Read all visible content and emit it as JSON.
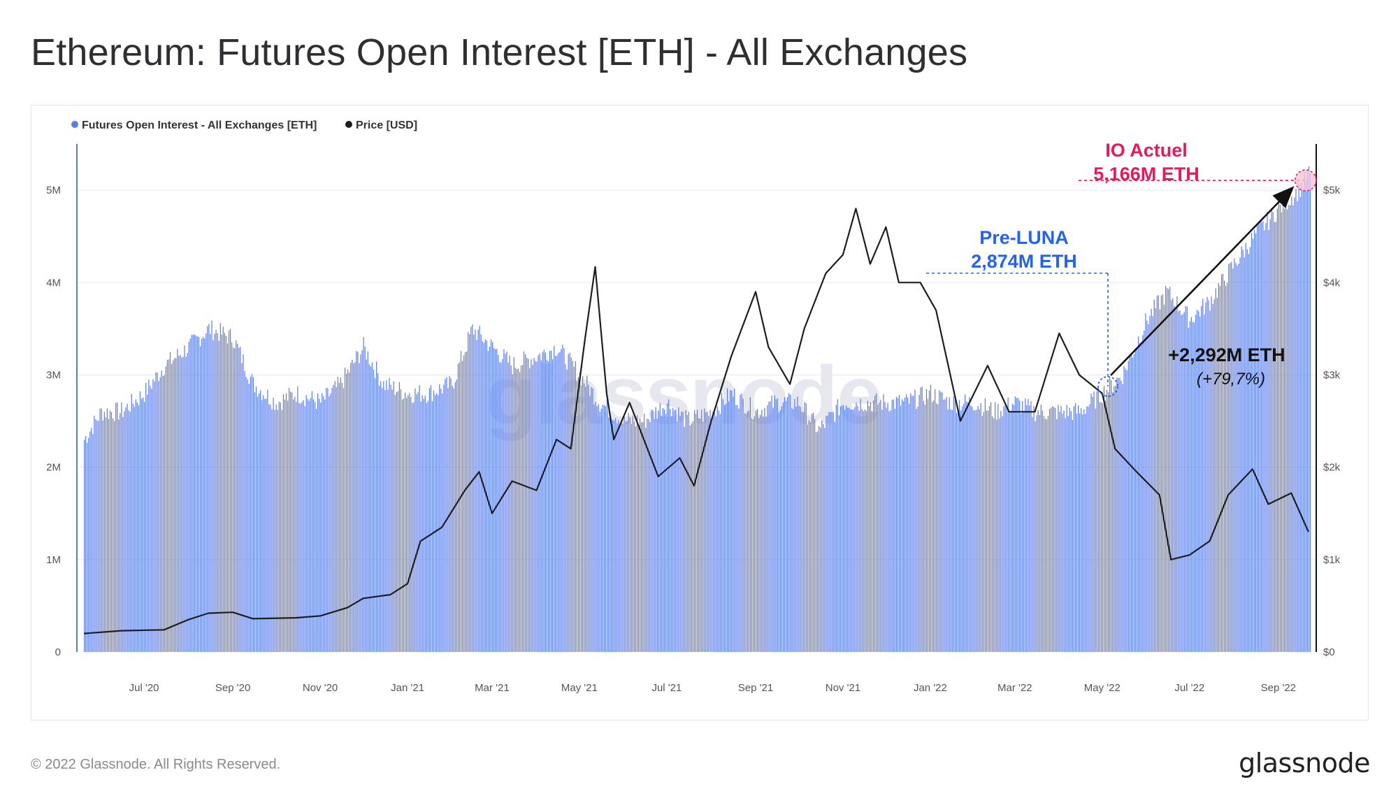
{
  "title": "Ethereum: Futures Open Interest [ETH] - All Exchanges",
  "footer": {
    "copyright": "© 2022 Glassnode. All Rights Reserved.",
    "brand": "glassnode"
  },
  "watermark": "glassnode",
  "colors": {
    "bars": "#5b7be8",
    "price": "#1e1e1e",
    "pre_luna": "#2563eb",
    "current": "#e8185b",
    "arrow": "#111111"
  },
  "chart_data": {
    "type": "bar",
    "legend": [
      {
        "name": "Futures Open Interest - All Exchanges [ETH]",
        "color": "#5b7be8"
      },
      {
        "name": "Price [USD]",
        "color": "#1e1e1e"
      }
    ],
    "x_ticks": [
      "Jul '20",
      "Sep '20",
      "Nov '20",
      "Jan '21",
      "Mar '21",
      "May '21",
      "Jul '21",
      "Sep '21",
      "Nov '21",
      "Jan '22",
      "Mar '22",
      "May '22",
      "Jul '22",
      "Sep '22"
    ],
    "y_left": {
      "ticks": [
        "0",
        "1M",
        "2M",
        "3M",
        "4M",
        "5M"
      ],
      "range": [
        0,
        5500000
      ]
    },
    "y_right": {
      "ticks": [
        "$0",
        "$1k",
        "$2k",
        "$3k",
        "$4k",
        "$5k"
      ],
      "range": [
        0,
        5500
      ]
    },
    "x_range": [
      "2020-05-20",
      "2022-09-25"
    ],
    "series": [
      {
        "name": "Futures Open Interest - All Exchanges [ETH]",
        "type": "bar",
        "points": [
          [
            "2020-05-20",
            2.3
          ],
          [
            "2020-06-01",
            2.6
          ],
          [
            "2020-06-15",
            2.6
          ],
          [
            "2020-07-01",
            2.8
          ],
          [
            "2020-07-15",
            3.1
          ],
          [
            "2020-08-01",
            3.3
          ],
          [
            "2020-08-15",
            3.5
          ],
          [
            "2020-09-01",
            3.4
          ],
          [
            "2020-09-15",
            2.9
          ],
          [
            "2020-10-01",
            2.7
          ],
          [
            "2020-10-15",
            2.8
          ],
          [
            "2020-11-01",
            2.7
          ],
          [
            "2020-11-15",
            2.9
          ],
          [
            "2020-12-01",
            3.3
          ],
          [
            "2020-12-15",
            2.9
          ],
          [
            "2021-01-01",
            2.8
          ],
          [
            "2021-01-15",
            2.8
          ],
          [
            "2021-02-01",
            2.9
          ],
          [
            "2021-02-15",
            3.5
          ],
          [
            "2021-03-01",
            3.3
          ],
          [
            "2021-03-15",
            3.1
          ],
          [
            "2021-04-01",
            3.2
          ],
          [
            "2021-04-15",
            3.3
          ],
          [
            "2021-05-01",
            3.0
          ],
          [
            "2021-05-15",
            2.7
          ],
          [
            "2021-06-01",
            2.5
          ],
          [
            "2021-06-15",
            2.5
          ],
          [
            "2021-07-01",
            2.7
          ],
          [
            "2021-07-15",
            2.5
          ],
          [
            "2021-08-01",
            2.6
          ],
          [
            "2021-08-15",
            2.8
          ],
          [
            "2021-09-01",
            2.6
          ],
          [
            "2021-09-15",
            2.7
          ],
          [
            "2021-10-01",
            2.7
          ],
          [
            "2021-10-15",
            2.4
          ],
          [
            "2021-11-01",
            2.7
          ],
          [
            "2021-11-15",
            2.7
          ],
          [
            "2021-12-01",
            2.7
          ],
          [
            "2021-12-15",
            2.7
          ],
          [
            "2022-01-01",
            2.8
          ],
          [
            "2022-01-15",
            2.7
          ],
          [
            "2022-02-01",
            2.7
          ],
          [
            "2022-02-15",
            2.6
          ],
          [
            "2022-03-01",
            2.7
          ],
          [
            "2022-03-15",
            2.6
          ],
          [
            "2022-04-01",
            2.6
          ],
          [
            "2022-04-15",
            2.6
          ],
          [
            "2022-05-01",
            2.8
          ],
          [
            "2022-05-15",
            3.0
          ],
          [
            "2022-06-01",
            3.6
          ],
          [
            "2022-06-15",
            3.9
          ],
          [
            "2022-07-01",
            3.6
          ],
          [
            "2022-07-15",
            3.8
          ],
          [
            "2022-08-01",
            4.2
          ],
          [
            "2022-08-15",
            4.5
          ],
          [
            "2022-09-01",
            4.8
          ],
          [
            "2022-09-15",
            5.0
          ],
          [
            "2022-09-22",
            5.17
          ]
        ],
        "unit": "M ETH"
      },
      {
        "name": "Price [USD]",
        "type": "line",
        "points": [
          [
            "2020-05-20",
            200
          ],
          [
            "2020-06-15",
            230
          ],
          [
            "2020-07-15",
            240
          ],
          [
            "2020-08-01",
            350
          ],
          [
            "2020-08-15",
            420
          ],
          [
            "2020-09-01",
            430
          ],
          [
            "2020-09-15",
            360
          ],
          [
            "2020-10-15",
            370
          ],
          [
            "2020-11-01",
            390
          ],
          [
            "2020-11-20",
            480
          ],
          [
            "2020-12-01",
            580
          ],
          [
            "2020-12-20",
            620
          ],
          [
            "2021-01-01",
            740
          ],
          [
            "2021-01-10",
            1200
          ],
          [
            "2021-01-25",
            1350
          ],
          [
            "2021-02-10",
            1750
          ],
          [
            "2021-02-20",
            1950
          ],
          [
            "2021-03-01",
            1500
          ],
          [
            "2021-03-15",
            1850
          ],
          [
            "2021-04-01",
            1750
          ],
          [
            "2021-04-15",
            2300
          ],
          [
            "2021-04-25",
            2200
          ],
          [
            "2021-05-05",
            3400
          ],
          [
            "2021-05-12",
            4170
          ],
          [
            "2021-05-20",
            2800
          ],
          [
            "2021-05-25",
            2300
          ],
          [
            "2021-06-05",
            2700
          ],
          [
            "2021-06-25",
            1900
          ],
          [
            "2021-07-10",
            2100
          ],
          [
            "2021-07-20",
            1800
          ],
          [
            "2021-08-01",
            2500
          ],
          [
            "2021-08-15",
            3200
          ],
          [
            "2021-09-01",
            3900
          ],
          [
            "2021-09-10",
            3300
          ],
          [
            "2021-09-25",
            2900
          ],
          [
            "2021-10-05",
            3500
          ],
          [
            "2021-10-20",
            4100
          ],
          [
            "2021-11-01",
            4300
          ],
          [
            "2021-11-10",
            4800
          ],
          [
            "2021-11-20",
            4200
          ],
          [
            "2021-12-01",
            4600
          ],
          [
            "2021-12-10",
            4000
          ],
          [
            "2021-12-25",
            4000
          ],
          [
            "2022-01-05",
            3700
          ],
          [
            "2022-01-22",
            2500
          ],
          [
            "2022-02-10",
            3100
          ],
          [
            "2022-02-25",
            2600
          ],
          [
            "2022-03-15",
            2600
          ],
          [
            "2022-04-01",
            3450
          ],
          [
            "2022-04-15",
            3000
          ],
          [
            "2022-05-01",
            2800
          ],
          [
            "2022-05-10",
            2200
          ],
          [
            "2022-05-25",
            1950
          ],
          [
            "2022-06-10",
            1700
          ],
          [
            "2022-06-18",
            1000
          ],
          [
            "2022-07-01",
            1050
          ],
          [
            "2022-07-15",
            1200
          ],
          [
            "2022-07-28",
            1700
          ],
          [
            "2022-08-14",
            1980
          ],
          [
            "2022-08-25",
            1600
          ],
          [
            "2022-09-10",
            1720
          ],
          [
            "2022-09-22",
            1300
          ]
        ],
        "unit": "USD"
      }
    ],
    "annotations": [
      {
        "id": "pre_luna",
        "line1": "Pre-LUNA",
        "line2": "2,874M ETH",
        "date": "2022-05-05",
        "value": 2.874
      },
      {
        "id": "current",
        "line1": "IO Actuel",
        "line2": "5,166M ETH",
        "date": "2022-09-22",
        "value": 5.166
      },
      {
        "id": "change",
        "line1": "+2,292M ETH",
        "line2": "(+79,7%)"
      }
    ]
  }
}
